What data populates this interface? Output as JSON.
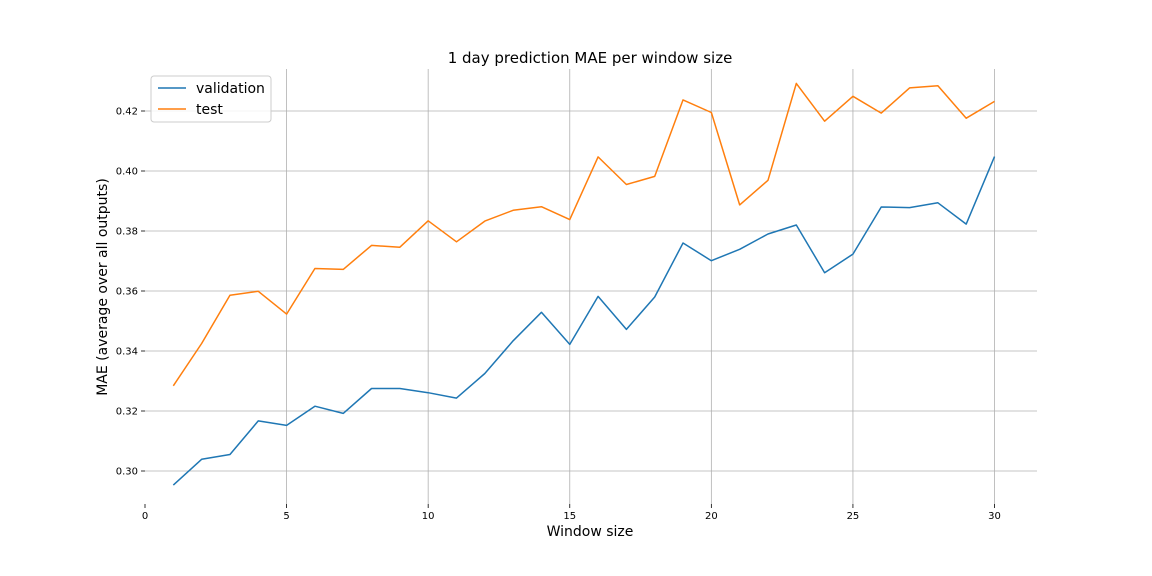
{
  "chart_data": {
    "type": "line",
    "title": "1 day prediction MAE per window size",
    "xlabel": "Window size",
    "ylabel": "MAE (average over all outputs)",
    "xlim": [
      0,
      31.5
    ],
    "ylim": [
      0.289,
      0.434
    ],
    "xticks": [
      0,
      5,
      10,
      15,
      20,
      25,
      30
    ],
    "yticks": [
      0.3,
      0.32,
      0.34,
      0.36,
      0.38,
      0.4,
      0.42
    ],
    "grid": true,
    "legend_position": "top-left",
    "x": [
      1,
      2,
      3,
      4,
      5,
      6,
      7,
      8,
      9,
      10,
      11,
      12,
      13,
      14,
      15,
      16,
      17,
      18,
      19,
      20,
      21,
      22,
      23,
      24,
      25,
      26,
      27,
      28,
      29,
      30
    ],
    "series": [
      {
        "name": "validation",
        "color": "#1f77b4",
        "values": [
          0.2953,
          0.3039,
          0.3055,
          0.3167,
          0.3152,
          0.3216,
          0.3192,
          0.3275,
          0.3275,
          0.3261,
          0.3243,
          0.3325,
          0.3434,
          0.3529,
          0.3422,
          0.3582,
          0.3472,
          0.358,
          0.376,
          0.3701,
          0.3739,
          0.379,
          0.382,
          0.3661,
          0.3723,
          0.388,
          0.3878,
          0.3894,
          0.3823,
          0.4048
        ]
      },
      {
        "name": "test",
        "color": "#ff7f0e",
        "values": [
          0.3284,
          0.3425,
          0.3586,
          0.3599,
          0.3523,
          0.3675,
          0.3672,
          0.3752,
          0.3746,
          0.3834,
          0.3764,
          0.3833,
          0.3869,
          0.3881,
          0.3838,
          0.4047,
          0.3955,
          0.3982,
          0.4237,
          0.4195,
          0.3887,
          0.3969,
          0.4292,
          0.4166,
          0.4249,
          0.4193,
          0.4277,
          0.4284,
          0.4176,
          0.4232
        ]
      }
    ]
  }
}
